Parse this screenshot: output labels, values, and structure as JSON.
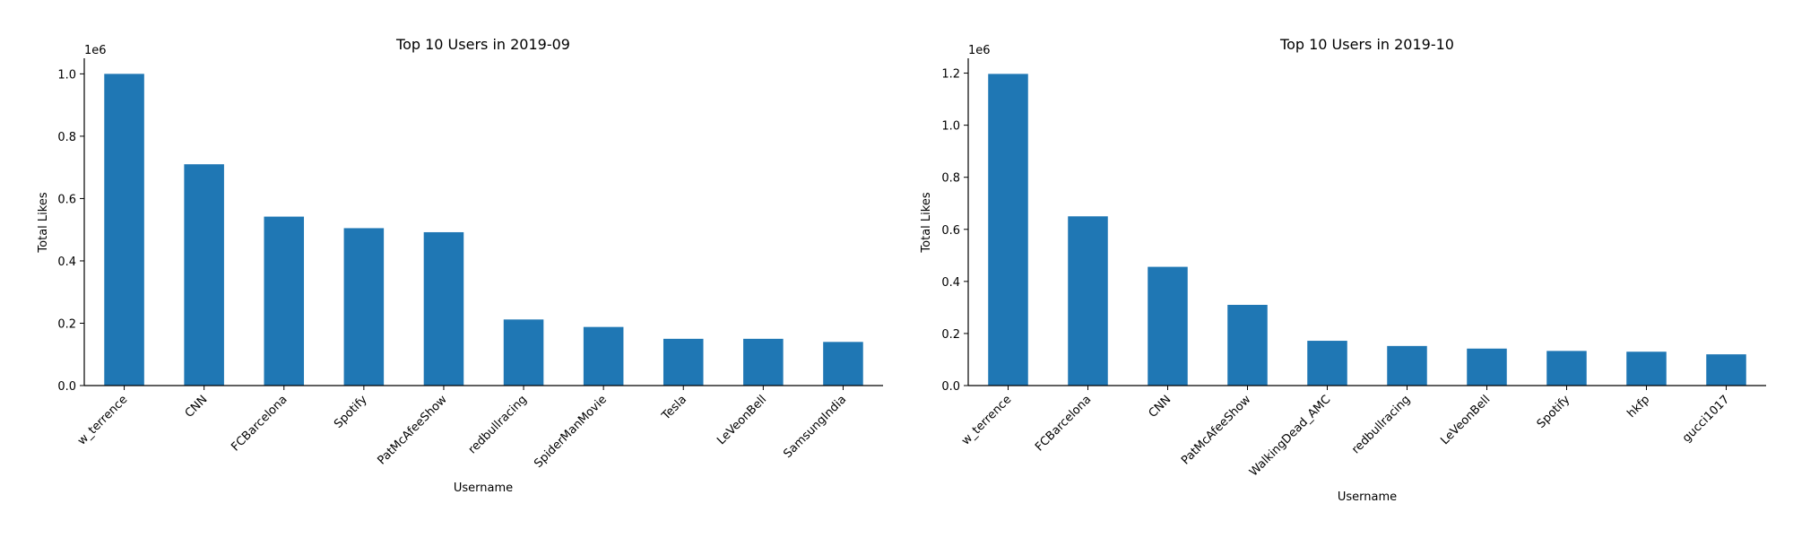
{
  "colors": {
    "bar": "#1f77b4",
    "axis": "#000000",
    "background": "#ffffff"
  },
  "chart_data": [
    {
      "type": "bar",
      "title": "Top 10 Users in 2019-09",
      "xlabel": "Username",
      "ylabel": "Total Likes",
      "offset_text": "1e6",
      "categories": [
        "w_terrence",
        "CNN",
        "FCBarcelona",
        "Spotify",
        "PatMcAfeeShow",
        "redbullracing",
        "SpiderManMovie",
        "Tesla",
        "LeVeonBell",
        "SamsungIndia"
      ],
      "values": [
        1000000,
        710000,
        542000,
        505000,
        492000,
        212000,
        188000,
        150000,
        150000,
        140000
      ],
      "ylim": [
        0,
        1050000
      ],
      "yticks": [
        0,
        0.2,
        0.4,
        0.6,
        0.8,
        1.0
      ],
      "ytick_labels": [
        "0.0",
        "0.2",
        "0.4",
        "0.6",
        "0.8",
        "1.0"
      ],
      "grid": false,
      "legend": "none"
    },
    {
      "type": "bar",
      "title": "Top 10 Users in 2019-10",
      "xlabel": "Username",
      "ylabel": "Total Likes",
      "offset_text": "1e6",
      "categories": [
        "w_terrence",
        "FCBarcelona",
        "CNN",
        "PatMcAfeeShow",
        "WalkingDead_AMC",
        "redbullracing",
        "LeVeonBell",
        "Spotify",
        "hkfp",
        "gucci1017"
      ],
      "values": [
        1197000,
        650000,
        456000,
        310000,
        172000,
        152000,
        142000,
        133000,
        130000,
        120000
      ],
      "ylim": [
        0,
        1257000
      ],
      "yticks": [
        0,
        0.2,
        0.4,
        0.6,
        0.8,
        1.0,
        1.2
      ],
      "ytick_labels": [
        "0.0",
        "0.2",
        "0.4",
        "0.6",
        "0.8",
        "1.0",
        "1.2"
      ],
      "grid": false,
      "legend": "none"
    }
  ]
}
